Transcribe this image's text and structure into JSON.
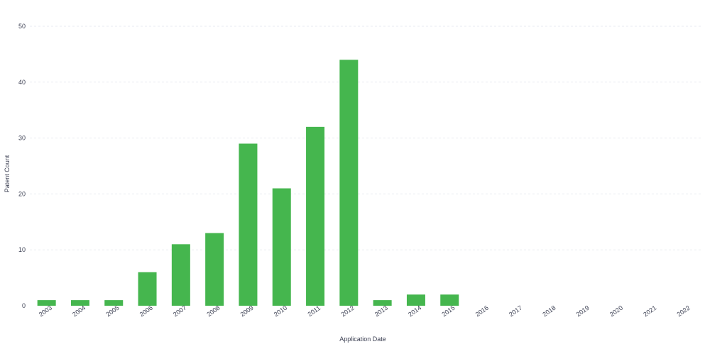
{
  "chart_data": {
    "type": "bar",
    "categories": [
      "2003",
      "2004",
      "2005",
      "2006",
      "2007",
      "2008",
      "2009",
      "2010",
      "2011",
      "2012",
      "2013",
      "2014",
      "2015",
      "2016",
      "2017",
      "2018",
      "2019",
      "2020",
      "2021",
      "2022"
    ],
    "values": [
      1,
      1,
      1,
      6,
      11,
      13,
      29,
      21,
      32,
      44,
      1,
      2,
      2,
      0,
      0,
      0,
      0,
      0,
      0,
      0
    ],
    "xlabel": "Application Date",
    "ylabel": "Patent Count",
    "ylim": [
      0,
      50
    ],
    "yticks": [
      0,
      10,
      20,
      30,
      40,
      50
    ],
    "grid": true,
    "colors": {
      "bar": "#45b64e",
      "grid": "#e9ebf0",
      "text": "#3b3f52"
    }
  }
}
